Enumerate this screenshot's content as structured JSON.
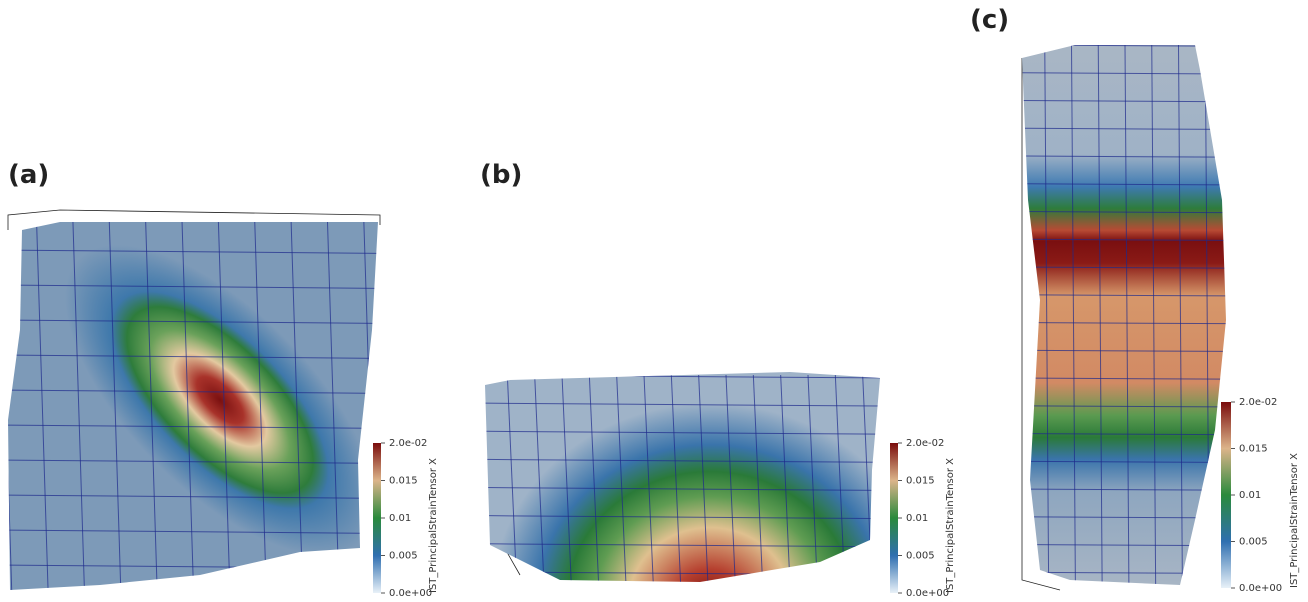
{
  "panels": [
    {
      "label": "(a)"
    },
    {
      "label": "(b)"
    },
    {
      "label": "(c)"
    }
  ],
  "colorbar": {
    "title": "IST_PrincipalStrainTensor X",
    "range": [
      0,
      0.02
    ],
    "ticks": [
      {
        "value": 0.02,
        "label": "2.0e-02"
      },
      0.015,
      0.01,
      0.005,
      {
        "value": 0,
        "label": "0.0e+00"
      }
    ]
  }
}
